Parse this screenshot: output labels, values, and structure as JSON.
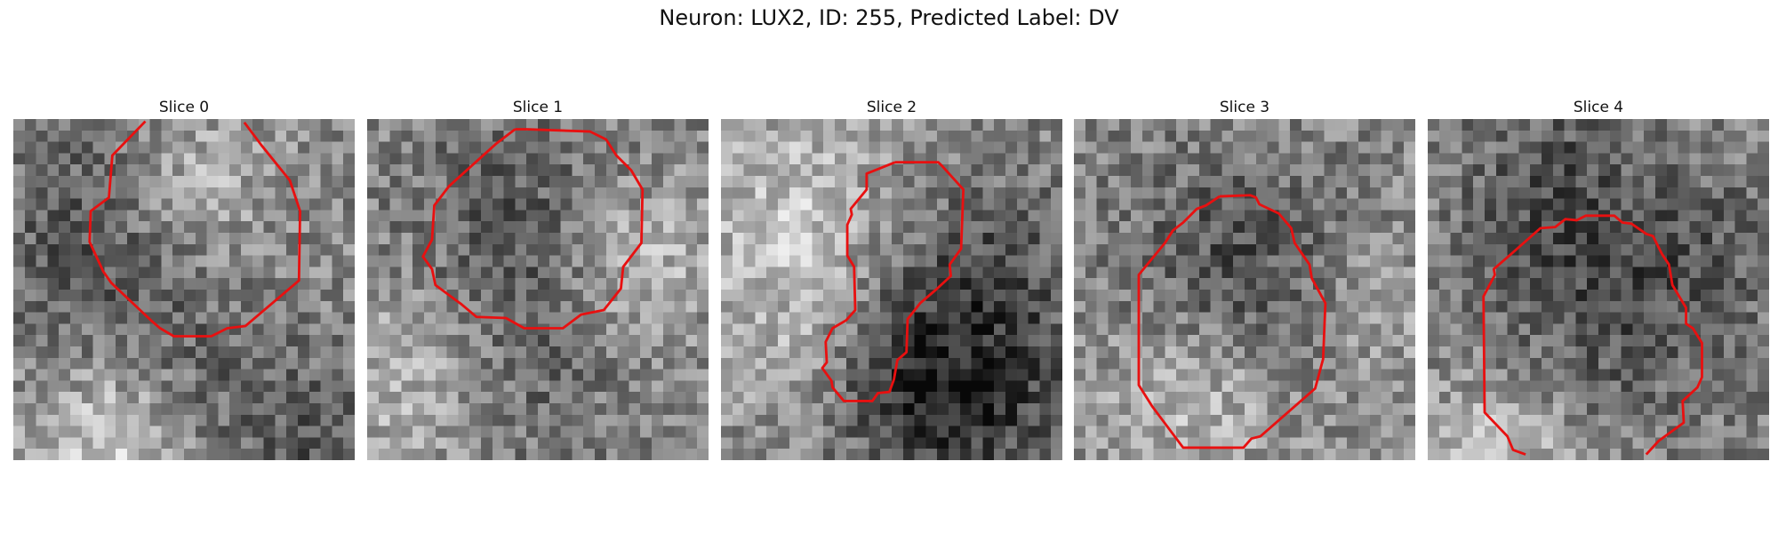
{
  "figure": {
    "title": "Neuron: LUX2, ID: 255, Predicted Label: DV"
  },
  "contour_color": "#e81010",
  "panels": [
    {
      "title": "Slice 0"
    },
    {
      "title": "Slice 1"
    },
    {
      "title": "Slice 2"
    },
    {
      "title": "Slice 3"
    },
    {
      "title": "Slice 4"
    }
  ]
}
